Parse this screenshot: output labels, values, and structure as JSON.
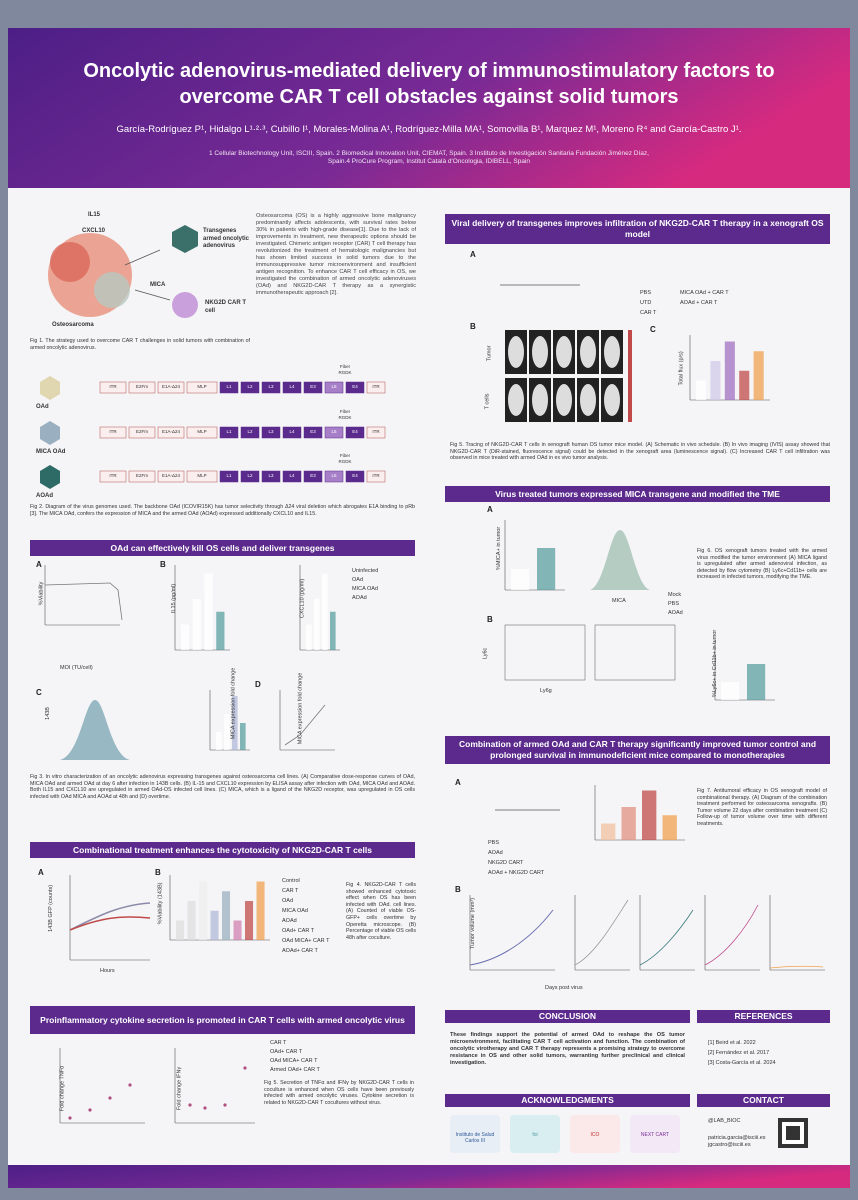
{
  "header": {
    "title": "Oncolytic adenovirus-mediated delivery of immunostimulatory factors to overcome CAR T cell obstacles against solid tumors",
    "authors": "García-Rodríguez P¹, Hidalgo L¹·²·³, Cubillo I¹, Morales-Molina A¹, Rodríguez-Milla MA¹, Somovilla B¹, Marquez M¹, Moreno R⁴ and García-Castro J¹.",
    "affiliations": "1 Cellular Biotechnology Unit, ISCIII, Spain. 2 Biomedical Innovation Unit, CIEMAT, Spain. 3 Instituto de Investigación Sanitaria Fundación Jiménez Díaz, Spain.4 ProCure Program, Institut Català d'Oncologia, IDIBELL, Spain"
  },
  "intro": {
    "figure_labels": [
      "IL15",
      "CXCL10",
      "Transgenes armed oncolytic adenovirus",
      "MICA",
      "NKG2D CAR T cell",
      "Osteosarcoma"
    ],
    "text": "Osteosarcoma (OS) is a highly aggressive bone malignancy predominantly affects adolescents, with survival rates below 30% in patients with high-grade disease[1]. Due to the lack of improvements in treatment, new therapeutic options should be investigated. Chimeric antigen receptor (CAR) T cell therapy has revolutionized the treatment of hematologic malignancies but has shown limited success in solid tumors due to the immunosuppressive tumor microenvironment and insufficient antigen recognition. To enhance CAR T cell efficacy in OS, we investigated the combination of armed oncolytic adenoviruses (OAd) and NKG2D-CAR T therapy as a synergistic immunotherapeutic approach [2].",
    "caption": "Fig 1. The strategy used to overcome CAR T challenges in solid tumors with combination of armed oncolytic adenovirus."
  },
  "genomes": {
    "viruses": [
      "OAd",
      "MICA OAd",
      "AOAd"
    ],
    "elements": [
      "ITR",
      "E2Fm",
      "E1A-Δ24",
      "MLP",
      "L1",
      "L2",
      "L3",
      "L4",
      "E3",
      "L5",
      "E4",
      "ITR"
    ],
    "fiber": "Fiber RGDK",
    "caption": "Fig 2. Diagram of the virus genomes used. The backbone OAd (ICOVIR15K) has tumor selectivity through Δ24 viral deletion which abrogates E1A binding to pRb [3]. The MICA OAd, confers the expression of MICA and the armed OAd (AOAd) expressed additionally CXCL10 and IL15."
  },
  "left_sections": [
    {
      "heading": "OAd can effectively kill OS cells and deliver transgenes",
      "panels": [
        "A",
        "B",
        "C",
        "D"
      ],
      "axis_labels": [
        "%Viability",
        "MOI (TU/cell)",
        "IL15 (pg/ml)",
        "CXCL10 (pg/ml)",
        "MICA expression fold change",
        "MICA expression fold change",
        "143B"
      ],
      "legend": [
        "Uninfected",
        "OAd",
        "MICA OAd",
        "AOAd"
      ],
      "caption": "Fig 3. In vitro characterization of an oncolytic adenovirus expressing transgenes against osteosarcoma cell lines. (A) Comparative dose-response curves of OAd, MICA OAd and armed OAd at day 6 after infection in 143B cells. (B) IL-15 and CXCL10 expression by ELISA assay after infection with OAd, MICA OAd and AOAd. Both IL15 and CXCL10 are upregulated in armed OAd-OS infected cell lines. (C) MICA, which is a ligand of the NKG2D receptor, was upregulated in OS cells infected with OAd MICA and AOAd at 48h and (D) overtime."
    },
    {
      "heading": "Combinational treatment enhances the cytotoxicity of NKG2D-CAR T cells",
      "panels": [
        "A",
        "B"
      ],
      "axis_labels": [
        "143B GFP (counts)",
        "Hours",
        "%Viability (143B)"
      ],
      "legend": [
        "Control",
        "CAR T",
        "OAd",
        "MICA OAd",
        "AOAd",
        "OAd+ CAR T",
        "OAd MICA+ CAR T",
        "AOAd+ CAR T"
      ],
      "caption": "Fig 4. NKG2D-CAR T cells showed enhanced cytotoxic effect when OS has been infected with OAd. cell lines. (A) Counted of viable OS-GFP+ cells overtime by Operetta microscope. (B) Percentage of viable OS cells 48h after coculture."
    },
    {
      "heading": "Proinflammatory cytokine secretion is promoted in CAR T cells with armed oncolytic virus",
      "panels": [],
      "axis_labels": [
        "Fold change TNFα",
        "Fold change IFNγ"
      ],
      "legend": [
        "CAR T",
        "OAd+ CAR T",
        "OAd MICA+ CAR T",
        "Armed OAd+ CAR T"
      ],
      "caption": "Fig 5. Secretion of TNFα and IFNγ by NKG2D-CAR T cells in coculture is enhanced when OS cells have been previously infected with armed oncolytic viruses. Cytokine secretion is related to NKG2D-CAR T cocultures without virus."
    }
  ],
  "right_sections": [
    {
      "heading": "Viral delivery of transgenes improves infiltration of NKG2D-CAR T therapy in a xenograft OS model",
      "panels": [
        "A",
        "B",
        "C"
      ],
      "axis_labels": [
        "Tumor",
        "T cells",
        "Total flux (p/s)"
      ],
      "legend": [
        "PBS",
        "UTD",
        "CAR T",
        "MICA OAd + CAR T",
        "AOAd + CAR T"
      ],
      "caption": "Fig 5. Tracing of NKG2D-CAR T cells in xenograft human OS tumor mice model. (A) Schematic in vivo schedule. (B) In vivo imaging (IVIS) assay showed that NKG2D-CAR T (DiR-stained, fluorescence signal) could be detected in the xenograft area (luminescence signal). (C) Increased CAR T cell infiltration was observed in mice treated with armed OAd in ex vivo tumor analysis."
    },
    {
      "heading": "Virus treated tumors expressed MICA transgene and modified the TME",
      "panels": [
        "A",
        "B"
      ],
      "axis_labels": [
        "%MICA+ in tumor",
        "MICA",
        "Ly6c",
        "Ly6g",
        "%Ly6c+ in Cd11b+ in tumor"
      ],
      "legend": [
        "Mock",
        "PBS",
        "AOAd"
      ],
      "caption": "Fig 6. OS xenograft tumors treated with the armed virus modified the tumor environment (A) MICA ligand is upregulated after armed adenoviral infection, as detected by flow cytometry (B) Ly6c+Cd11b+ cells are increased in infected tumors, modifying the TME."
    },
    {
      "heading": "Combination of armed OAd and CAR T therapy significantly improved tumor control and prolonged survival in immunodeficient mice compared to monotherapies",
      "panels": [
        "A",
        "B"
      ],
      "axis_labels": [
        "Tumor volume (mm³)",
        "Days post virus"
      ],
      "legend": [
        "PBS",
        "AOAd",
        "NKG2D CART",
        "AOAd + NKG2D CART"
      ],
      "caption": "Fig 7. Antitumoral efficacy in OS xenograft model of combinational therapy. (A) Diagram of the combination treatment performed for osteosarcoma xenografts. (B) Tumor volume 22 days after combination treatment (C) Follow-up of tumor volume over time with different treatments."
    }
  ],
  "conclusion": {
    "heading": "CONCLUSION",
    "text": "These findings support the potential of armed OAd to reshape the OS tumor microenvironment, facilitating CAR T cell activation and function. The combination of oncolytic virotherapy and CAR T therapy represents a promising strategy to overcome resistance in OS and other solid tumors, warranting further preclinical and clinical investigation."
  },
  "references": {
    "heading": "REFERENCES",
    "items": [
      "[1] Beird et al. 2022",
      "[2] Fernández et al. 2017",
      "[3] Costa-García et al. 2024"
    ]
  },
  "acknowledgments": {
    "heading": "ACKNOWLEDGMENTS",
    "logos": [
      "Instituto de Salud Carlos III",
      "foi",
      "ICO",
      "NEXT CART"
    ]
  },
  "contact": {
    "heading": "CONTACT",
    "handle": "@LAB_BIOC",
    "emails": "patricia.garcia@isciii.es jgcastro@isciii.es"
  }
}
